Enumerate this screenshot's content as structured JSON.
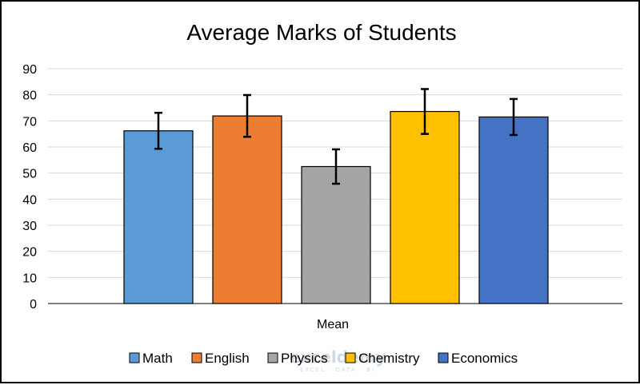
{
  "chart_data": {
    "type": "bar",
    "title": "Average Marks of Students",
    "xlabel": "Mean",
    "ylabel": "",
    "ylim": [
      0,
      90
    ],
    "yticks": [
      0,
      10,
      20,
      30,
      40,
      50,
      60,
      70,
      80,
      90
    ],
    "grid": true,
    "legend_position": "bottom",
    "categories": [
      "Mean"
    ],
    "series": [
      {
        "name": "Math",
        "value": 66.2,
        "error": 6.9,
        "color": "#5b9bd5"
      },
      {
        "name": "English",
        "value": 71.9,
        "error": 8.0,
        "color": "#ed7d31"
      },
      {
        "name": "Physics",
        "value": 52.5,
        "error": 6.6,
        "color": "#a5a5a5"
      },
      {
        "name": "Chemistry",
        "value": 73.6,
        "error": 8.6,
        "color": "#ffc000"
      },
      {
        "name": "Economics",
        "value": 71.5,
        "error": 6.9,
        "color": "#4472c4"
      }
    ]
  },
  "watermark": {
    "main": "exceldemy",
    "sub": "EXCEL · DATA · BI"
  }
}
